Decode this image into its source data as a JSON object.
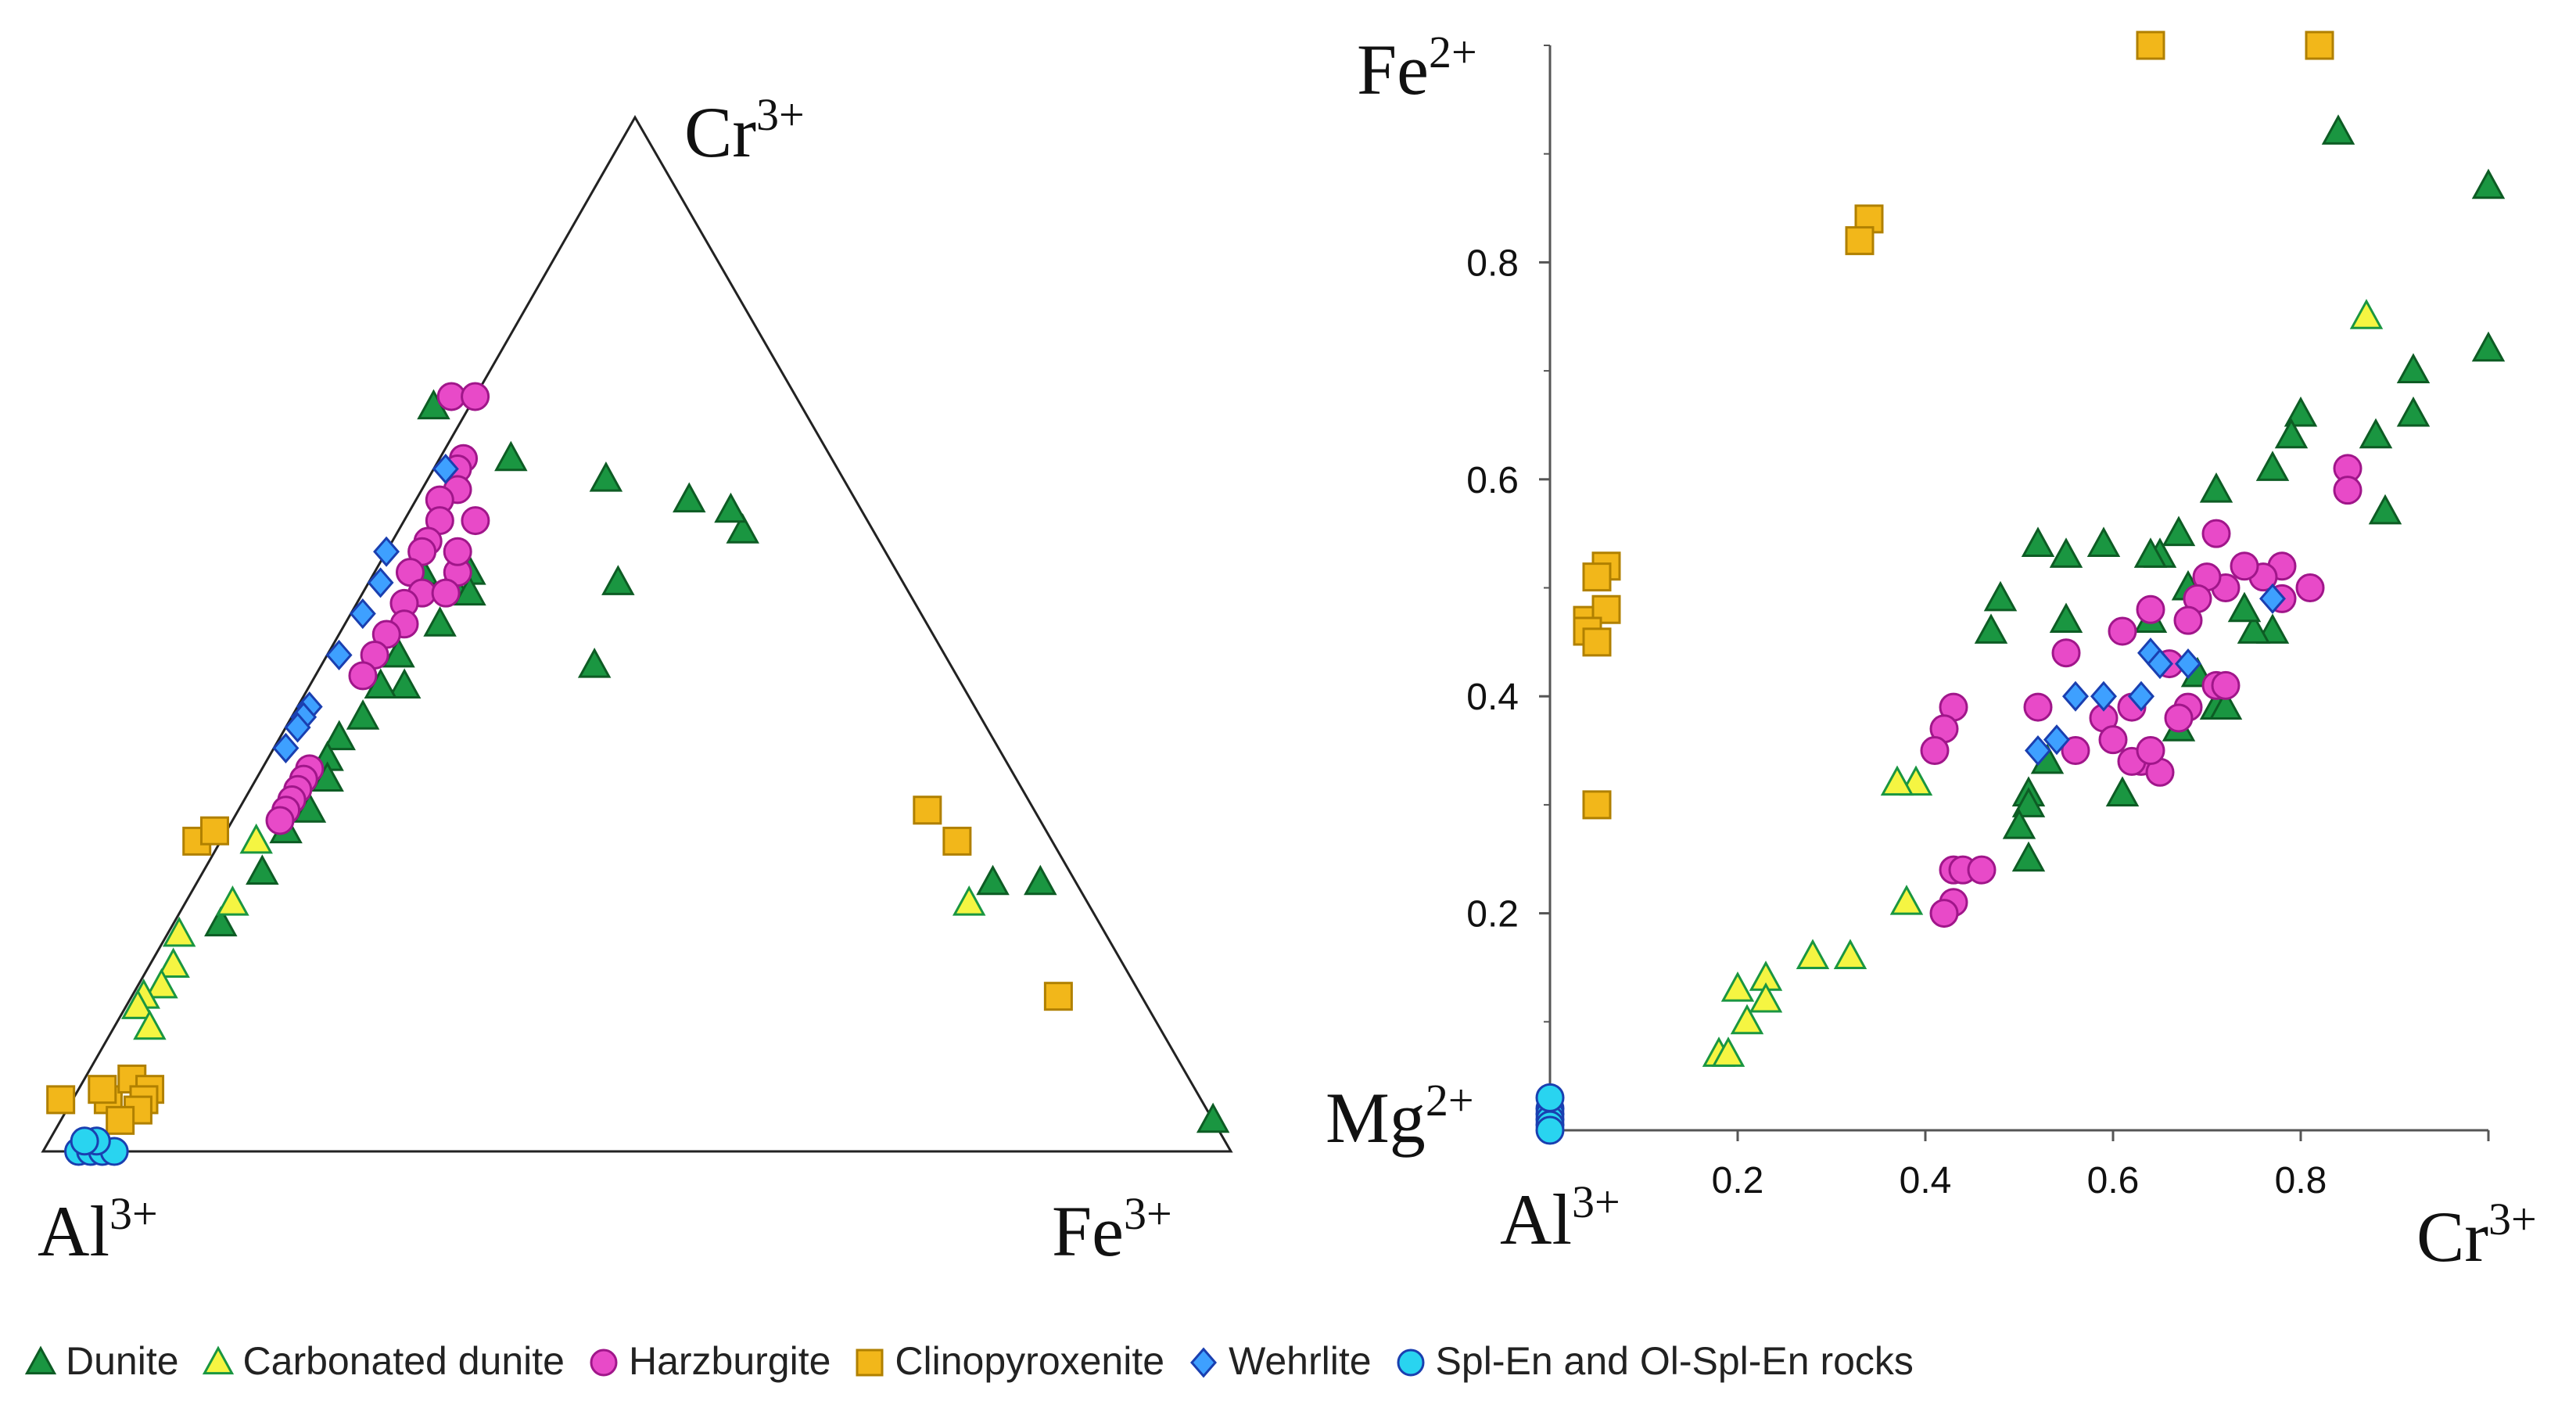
{
  "chart_data": [
    {
      "type": "ternary",
      "title": "",
      "apex_labels": {
        "bottom_left": {
          "base": "Al",
          "sup": "3+"
        },
        "top": {
          "base": "Cr",
          "sup": "3+"
        },
        "bottom_right": {
          "base": "Fe",
          "sup": "3+"
        }
      },
      "components": [
        "Al",
        "Cr",
        "Fe"
      ],
      "series": [
        {
          "name": "Dunite",
          "points": [
            {
              "Al": 0.4,
              "Cr": 0.56,
              "Fe": 0.04
            },
            {
              "Al": 0.38,
              "Cr": 0.55,
              "Fe": 0.07
            },
            {
              "Al": 0.36,
              "Cr": 0.56,
              "Fe": 0.08
            },
            {
              "Al": 0.41,
              "Cr": 0.51,
              "Fe": 0.08
            },
            {
              "Al": 0.47,
              "Cr": 0.45,
              "Fe": 0.08
            },
            {
              "Al": 0.52,
              "Cr": 0.42,
              "Fe": 0.06
            },
            {
              "Al": 0.55,
              "Cr": 0.4,
              "Fe": 0.05
            },
            {
              "Al": 0.57,
              "Cr": 0.38,
              "Fe": 0.05
            },
            {
              "Al": 0.58,
              "Cr": 0.36,
              "Fe": 0.06
            },
            {
              "Al": 0.61,
              "Cr": 0.33,
              "Fe": 0.06
            },
            {
              "Al": 0.64,
              "Cr": 0.31,
              "Fe": 0.05
            },
            {
              "Al": 0.68,
              "Cr": 0.27,
              "Fe": 0.05
            },
            {
              "Al": 0.74,
              "Cr": 0.22,
              "Fe": 0.04
            },
            {
              "Al": 0.49,
              "Cr": 0.45,
              "Fe": 0.06
            },
            {
              "Al": 0.46,
              "Cr": 0.48,
              "Fe": 0.06
            },
            {
              "Al": 0.37,
              "Cr": 0.54,
              "Fe": 0.09
            },
            {
              "Al": 0.31,
              "Cr": 0.72,
              "Fe": -0.03
            },
            {
              "Al": 0.3,
              "Cr": 0.47,
              "Fe": 0.23
            },
            {
              "Al": 0.24,
              "Cr": 0.55,
              "Fe": 0.21
            },
            {
              "Al": 0.27,
              "Cr": 0.67,
              "Fe": 0.06
            },
            {
              "Al": 0.2,
              "Cr": 0.65,
              "Fe": 0.15
            },
            {
              "Al": 0.14,
              "Cr": 0.63,
              "Fe": 0.23
            },
            {
              "Al": 0.11,
              "Cr": 0.6,
              "Fe": 0.29
            },
            {
              "Al": 0.11,
              "Cr": 0.62,
              "Fe": 0.27
            },
            {
              "Al": 0.07,
              "Cr": 0.26,
              "Fe": 0.67
            },
            {
              "Al": 0.03,
              "Cr": 0.26,
              "Fe": 0.71
            },
            {
              "Al": 0.0,
              "Cr": 0.03,
              "Fe": 0.97
            }
          ]
        },
        {
          "name": "Carbonated dunite",
          "points": [
            {
              "Al": 0.67,
              "Cr": 0.3,
              "Fe": 0.03
            },
            {
              "Al": 0.78,
              "Cr": 0.21,
              "Fe": 0.01
            },
            {
              "Al": 0.72,
              "Cr": 0.24,
              "Fe": 0.04
            },
            {
              "Al": 0.8,
              "Cr": 0.18,
              "Fe": 0.02
            },
            {
              "Al": 0.82,
              "Cr": 0.16,
              "Fe": 0.02
            },
            {
              "Al": 0.84,
              "Cr": 0.15,
              "Fe": 0.01
            },
            {
              "Al": 0.85,
              "Cr": 0.14,
              "Fe": 0.01
            },
            {
              "Al": 0.85,
              "Cr": 0.12,
              "Fe": 0.03
            },
            {
              "Al": 0.1,
              "Cr": 0.24,
              "Fe": 0.66
            }
          ]
        },
        {
          "name": "Harzburgite",
          "points": [
            {
              "Al": 0.29,
              "Cr": 0.73,
              "Fe": -0.02
            },
            {
              "Al": 0.27,
              "Cr": 0.73,
              "Fe": 0.0
            },
            {
              "Al": 0.31,
              "Cr": 0.67,
              "Fe": 0.02
            },
            {
              "Al": 0.32,
              "Cr": 0.66,
              "Fe": 0.02
            },
            {
              "Al": 0.33,
              "Cr": 0.64,
              "Fe": 0.03
            },
            {
              "Al": 0.35,
              "Cr": 0.63,
              "Fe": 0.02
            },
            {
              "Al": 0.36,
              "Cr": 0.61,
              "Fe": 0.03
            },
            {
              "Al": 0.38,
              "Cr": 0.59,
              "Fe": 0.03
            },
            {
              "Al": 0.39,
              "Cr": 0.58,
              "Fe": 0.03
            },
            {
              "Al": 0.41,
              "Cr": 0.56,
              "Fe": 0.03
            },
            {
              "Al": 0.41,
              "Cr": 0.54,
              "Fe": 0.05
            },
            {
              "Al": 0.43,
              "Cr": 0.53,
              "Fe": 0.04
            },
            {
              "Al": 0.44,
              "Cr": 0.51,
              "Fe": 0.05
            },
            {
              "Al": 0.46,
              "Cr": 0.5,
              "Fe": 0.04
            },
            {
              "Al": 0.48,
              "Cr": 0.48,
              "Fe": 0.04
            },
            {
              "Al": 0.5,
              "Cr": 0.46,
              "Fe": 0.04
            },
            {
              "Al": 0.59,
              "Cr": 0.37,
              "Fe": 0.04
            },
            {
              "Al": 0.6,
              "Cr": 0.36,
              "Fe": 0.04
            },
            {
              "Al": 0.61,
              "Cr": 0.35,
              "Fe": 0.04
            },
            {
              "Al": 0.62,
              "Cr": 0.34,
              "Fe": 0.04
            },
            {
              "Al": 0.63,
              "Cr": 0.33,
              "Fe": 0.04
            },
            {
              "Al": 0.64,
              "Cr": 0.32,
              "Fe": 0.04
            },
            {
              "Al": 0.37,
              "Cr": 0.56,
              "Fe": 0.07
            },
            {
              "Al": 0.39,
              "Cr": 0.54,
              "Fe": 0.07
            },
            {
              "Al": 0.36,
              "Cr": 0.58,
              "Fe": 0.06
            },
            {
              "Al": 0.33,
              "Cr": 0.61,
              "Fe": 0.06
            }
          ]
        },
        {
          "name": "Clinopyroxenite",
          "points": [
            {
              "Al": 0.96,
              "Cr": 0.05,
              "Fe": -0.01
            },
            {
              "Al": 0.92,
              "Cr": 0.05,
              "Fe": 0.03
            },
            {
              "Al": 0.92,
              "Cr": 0.06,
              "Fe": 0.02
            },
            {
              "Al": 0.89,
              "Cr": 0.07,
              "Fe": 0.04
            },
            {
              "Al": 0.88,
              "Cr": 0.06,
              "Fe": 0.06
            },
            {
              "Al": 0.89,
              "Cr": 0.05,
              "Fe": 0.06
            },
            {
              "Al": 0.9,
              "Cr": 0.04,
              "Fe": 0.06
            },
            {
              "Al": 0.92,
              "Cr": 0.03,
              "Fe": 0.05
            },
            {
              "Al": 0.72,
              "Cr": 0.3,
              "Fe": -0.02
            },
            {
              "Al": 0.7,
              "Cr": 0.31,
              "Fe": -0.01
            },
            {
              "Al": 0.09,
              "Cr": 0.33,
              "Fe": 0.58
            },
            {
              "Al": 0.08,
              "Cr": 0.3,
              "Fe": 0.62
            },
            {
              "Al": 0.07,
              "Cr": 0.15,
              "Fe": 0.78
            }
          ]
        },
        {
          "name": "Wehrlite",
          "points": [
            {
              "Al": 0.33,
              "Cr": 0.66,
              "Fe": 0.01
            },
            {
              "Al": 0.42,
              "Cr": 0.58,
              "Fe": 0.0
            },
            {
              "Al": 0.44,
              "Cr": 0.55,
              "Fe": 0.01
            },
            {
              "Al": 0.47,
              "Cr": 0.52,
              "Fe": 0.01
            },
            {
              "Al": 0.51,
              "Cr": 0.48,
              "Fe": 0.01
            },
            {
              "Al": 0.56,
              "Cr": 0.43,
              "Fe": 0.01
            },
            {
              "Al": 0.57,
              "Cr": 0.42,
              "Fe": 0.01
            },
            {
              "Al": 0.58,
              "Cr": 0.41,
              "Fe": 0.01
            },
            {
              "Al": 0.6,
              "Cr": 0.39,
              "Fe": 0.01
            }
          ]
        },
        {
          "name": "Spl-En and Ol-Spl-En rocks",
          "points": [
            {
              "Al": 0.97,
              "Cr": 0.0,
              "Fe": 0.03
            },
            {
              "Al": 0.96,
              "Cr": 0.0,
              "Fe": 0.04
            },
            {
              "Al": 0.95,
              "Cr": 0.0,
              "Fe": 0.05
            },
            {
              "Al": 0.94,
              "Cr": 0.0,
              "Fe": 0.06
            },
            {
              "Al": 0.95,
              "Cr": 0.01,
              "Fe": 0.04
            },
            {
              "Al": 0.96,
              "Cr": 0.01,
              "Fe": 0.03
            }
          ]
        }
      ]
    },
    {
      "type": "scatter",
      "title": "",
      "xlabel_left": {
        "base": "Al",
        "sup": "3+"
      },
      "xlabel_right": {
        "base": "Cr",
        "sup": "3+"
      },
      "ylabel_top": {
        "base": "Fe",
        "sup": "2+"
      },
      "ylabel_bottom": {
        "base": "Mg",
        "sup": "2+"
      },
      "xlim": [
        0,
        1
      ],
      "ylim": [
        0,
        1
      ],
      "xticks": [
        "0.2",
        "0.4",
        "0.6",
        "0.8"
      ],
      "yticks": [
        "0.2",
        "0.4",
        "0.6",
        "0.8"
      ],
      "series": [
        {
          "name": "Dunite",
          "points": [
            [
              0.84,
              0.92
            ],
            [
              1.0,
              0.87
            ],
            [
              1.0,
              0.72
            ],
            [
              0.92,
              0.7
            ],
            [
              0.92,
              0.66
            ],
            [
              0.88,
              0.64
            ],
            [
              0.89,
              0.57
            ],
            [
              0.8,
              0.66
            ],
            [
              0.79,
              0.64
            ],
            [
              0.77,
              0.61
            ],
            [
              0.71,
              0.59
            ],
            [
              0.67,
              0.55
            ],
            [
              0.65,
              0.53
            ],
            [
              0.64,
              0.53
            ],
            [
              0.59,
              0.54
            ],
            [
              0.55,
              0.53
            ],
            [
              0.52,
              0.54
            ],
            [
              0.48,
              0.49
            ],
            [
              0.47,
              0.46
            ],
            [
              0.55,
              0.47
            ],
            [
              0.53,
              0.34
            ],
            [
              0.51,
              0.31
            ],
            [
              0.51,
              0.3
            ],
            [
              0.5,
              0.28
            ],
            [
              0.51,
              0.25
            ],
            [
              0.61,
              0.31
            ],
            [
              0.67,
              0.37
            ],
            [
              0.71,
              0.39
            ],
            [
              0.72,
              0.39
            ],
            [
              0.77,
              0.46
            ],
            [
              0.75,
              0.46
            ],
            [
              0.74,
              0.48
            ],
            [
              0.64,
              0.47
            ],
            [
              0.68,
              0.5
            ],
            [
              0.69,
              0.42
            ]
          ]
        },
        {
          "name": "Carbonated dunite",
          "points": [
            [
              0.87,
              0.75
            ],
            [
              0.39,
              0.32
            ],
            [
              0.37,
              0.32
            ],
            [
              0.38,
              0.21
            ],
            [
              0.32,
              0.16
            ],
            [
              0.28,
              0.16
            ],
            [
              0.23,
              0.14
            ],
            [
              0.2,
              0.13
            ],
            [
              0.23,
              0.12
            ],
            [
              0.21,
              0.1
            ],
            [
              0.18,
              0.07
            ],
            [
              0.19,
              0.07
            ]
          ]
        },
        {
          "name": "Harzburgite",
          "points": [
            [
              0.85,
              0.61
            ],
            [
              0.85,
              0.59
            ],
            [
              0.71,
              0.55
            ],
            [
              0.81,
              0.5
            ],
            [
              0.78,
              0.52
            ],
            [
              0.76,
              0.51
            ],
            [
              0.74,
              0.52
            ],
            [
              0.72,
              0.5
            ],
            [
              0.7,
              0.51
            ],
            [
              0.69,
              0.49
            ],
            [
              0.68,
              0.47
            ],
            [
              0.64,
              0.48
            ],
            [
              0.61,
              0.46
            ],
            [
              0.55,
              0.44
            ],
            [
              0.78,
              0.49
            ],
            [
              0.66,
              0.43
            ],
            [
              0.68,
              0.39
            ],
            [
              0.71,
              0.41
            ],
            [
              0.72,
              0.41
            ],
            [
              0.62,
              0.39
            ],
            [
              0.59,
              0.38
            ],
            [
              0.6,
              0.36
            ],
            [
              0.63,
              0.34
            ],
            [
              0.65,
              0.33
            ],
            [
              0.67,
              0.38
            ],
            [
              0.56,
              0.35
            ],
            [
              0.52,
              0.39
            ],
            [
              0.43,
              0.39
            ],
            [
              0.42,
              0.37
            ],
            [
              0.41,
              0.35
            ],
            [
              0.43,
              0.24
            ],
            [
              0.44,
              0.24
            ],
            [
              0.46,
              0.24
            ],
            [
              0.43,
              0.21
            ],
            [
              0.42,
              0.2
            ],
            [
              0.62,
              0.34
            ],
            [
              0.64,
              0.35
            ]
          ]
        },
        {
          "name": "Clinopyroxenite",
          "points": [
            [
              0.64,
              1.0
            ],
            [
              0.82,
              1.0
            ],
            [
              0.34,
              0.84
            ],
            [
              0.33,
              0.82
            ],
            [
              0.06,
              0.52
            ],
            [
              0.05,
              0.51
            ],
            [
              0.04,
              0.47
            ],
            [
              0.06,
              0.48
            ],
            [
              0.04,
              0.46
            ],
            [
              0.05,
              0.45
            ],
            [
              0.05,
              0.3
            ]
          ]
        },
        {
          "name": "Wehrlite",
          "points": [
            [
              0.77,
              0.49
            ],
            [
              0.64,
              0.44
            ],
            [
              0.65,
              0.43
            ],
            [
              0.68,
              0.43
            ],
            [
              0.63,
              0.4
            ],
            [
              0.59,
              0.4
            ],
            [
              0.56,
              0.4
            ],
            [
              0.54,
              0.36
            ],
            [
              0.52,
              0.35
            ]
          ]
        },
        {
          "name": "Spl-En and Ol-Spl-En rocks",
          "points": [
            [
              0.0,
              0.02
            ],
            [
              0.0,
              0.015
            ],
            [
              0.0,
              0.01
            ],
            [
              0.0,
              0.005
            ],
            [
              0.0,
              0.0
            ],
            [
              0.0,
              0.03
            ]
          ]
        }
      ]
    }
  ],
  "legend": [
    {
      "name": "Dunite",
      "marker": "triangle",
      "fill": "#1a9641",
      "stroke": "#0d5c24"
    },
    {
      "name": "Carbonated dunite",
      "marker": "triangle",
      "fill": "#f5f542",
      "stroke": "#1a9641"
    },
    {
      "name": "Harzburgite",
      "marker": "circle",
      "fill": "#e84ac8",
      "stroke": "#a0168a"
    },
    {
      "name": "Clinopyroxenite",
      "marker": "square",
      "fill": "#f2b71a",
      "stroke": "#b08000"
    },
    {
      "name": "Wehrlite",
      "marker": "diamond",
      "fill": "#3ea0ff",
      "stroke": "#1a3fb0"
    },
    {
      "name": "Spl-En and Ol-Spl-En rocks",
      "marker": "circle",
      "fill": "#29d4f0",
      "stroke": "#1a3fb0"
    }
  ]
}
